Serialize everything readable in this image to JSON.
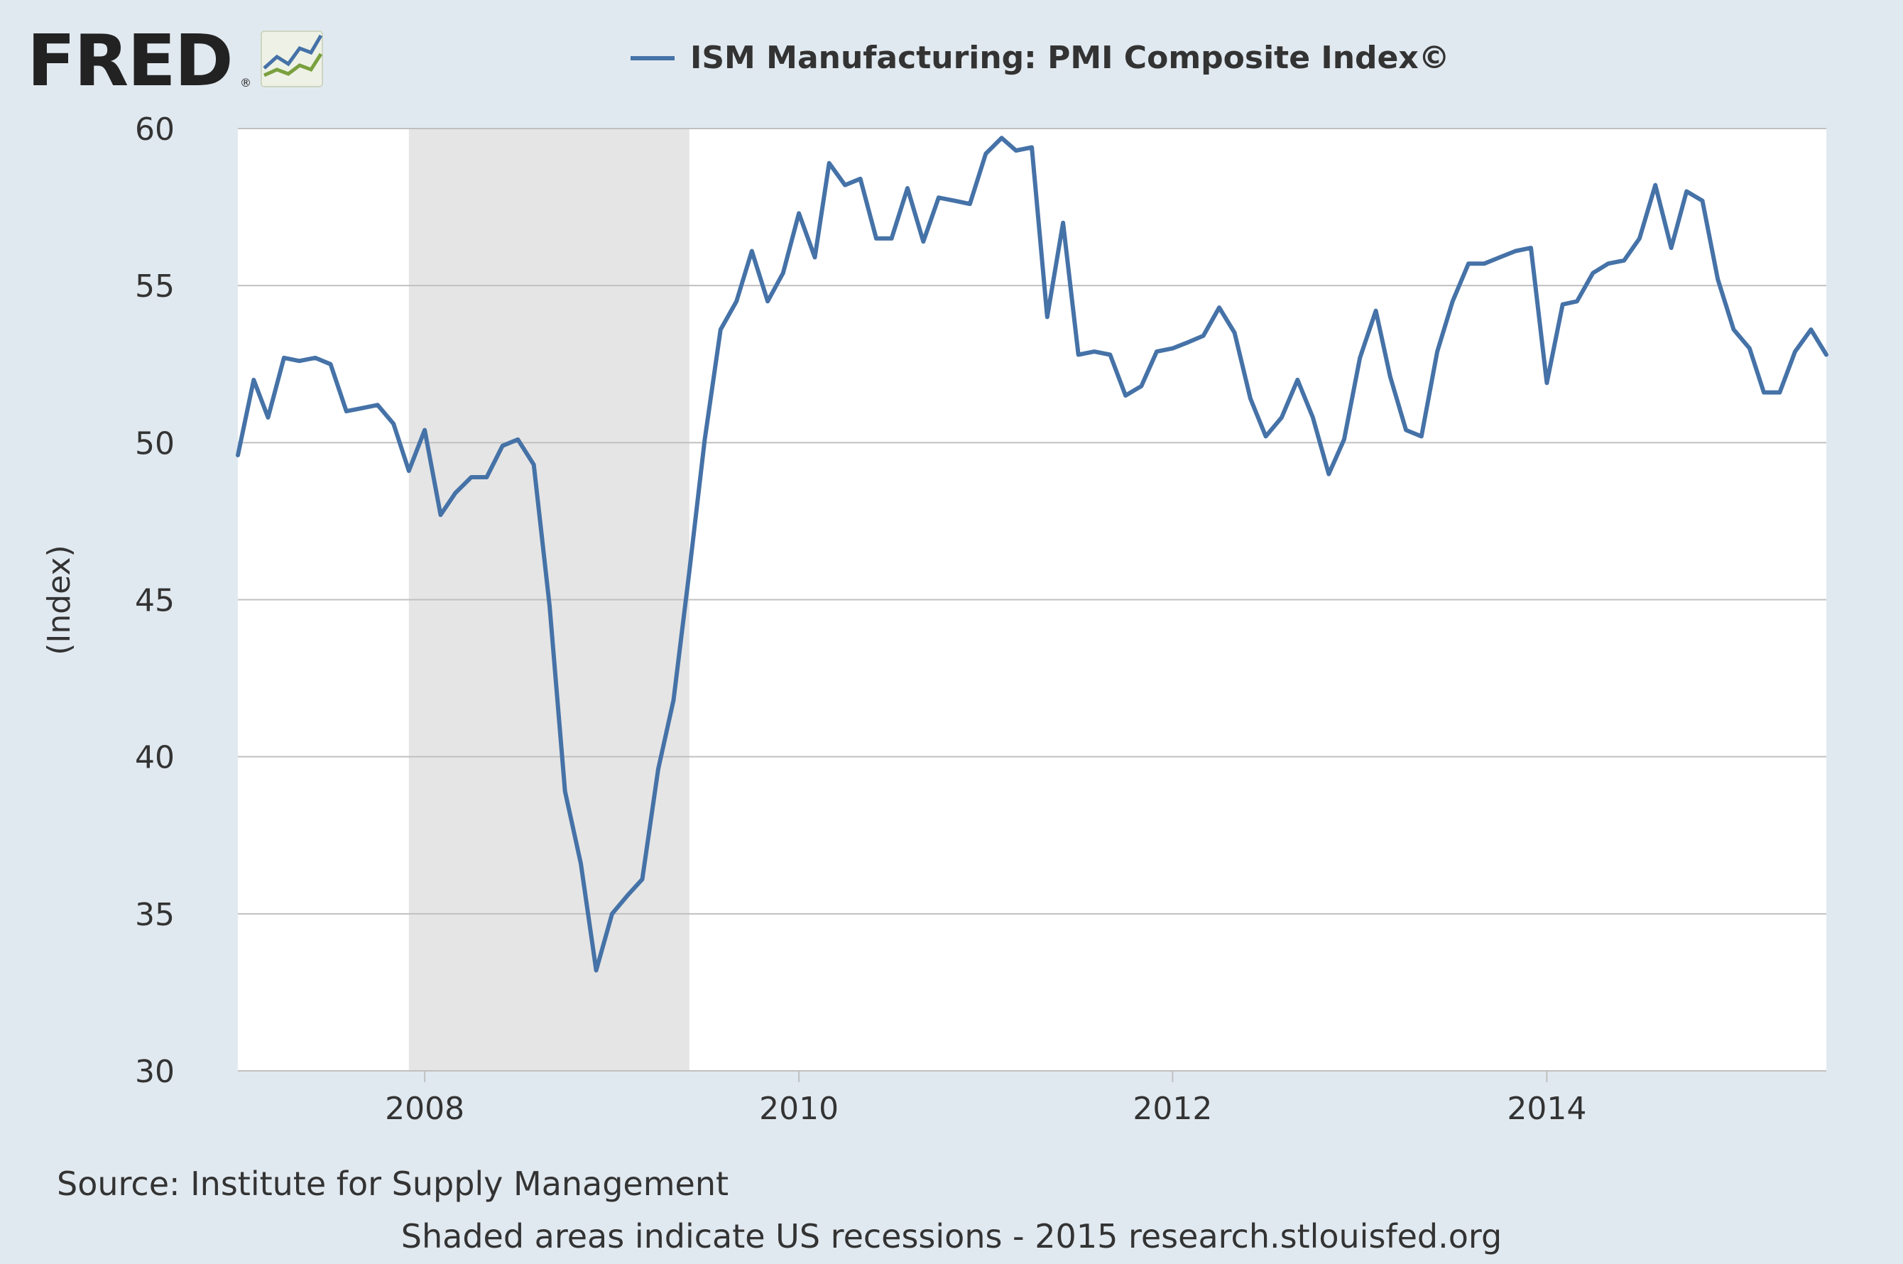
{
  "header": {
    "logo_text": "FRED",
    "logo_mark": "®",
    "logo_icon": "chart-trend-icon"
  },
  "footer": {
    "source": "Source: Institute for Supply Management",
    "note": "Shaded areas indicate US recessions - 2015 research.stlouisfed.org"
  },
  "colors": {
    "background": "#e1e9f0",
    "plot_background": "#ffffff",
    "line": "#4572a7",
    "recession": "#e5e5e5",
    "grid": "#c0c0c0",
    "text": "#333333"
  },
  "chart_data": {
    "type": "line",
    "title": "",
    "xlabel": "",
    "ylabel": "(Index)",
    "legend": {
      "position": "top-center",
      "entries": [
        "ISM Manufacturing: PMI Composite Index©"
      ]
    },
    "ylim": [
      30,
      60
    ],
    "xlim": [
      "2007-01-01",
      "2015-07-01"
    ],
    "y_ticks": [
      30,
      35,
      40,
      45,
      50,
      55,
      60
    ],
    "x_ticks": [
      "2008",
      "2010",
      "2012",
      "2014"
    ],
    "grid": {
      "horizontal": true,
      "vertical": false
    },
    "recessions": [
      {
        "start": "2007-12-01",
        "end": "2009-06-01"
      }
    ],
    "series": [
      {
        "name": "ISM Manufacturing: PMI Composite Index©",
        "x": [
          "2007-01",
          "2007-02",
          "2007-03",
          "2007-04",
          "2007-05",
          "2007-06",
          "2007-07",
          "2007-08",
          "2007-09",
          "2007-10",
          "2007-11",
          "2007-12",
          "2008-01",
          "2008-02",
          "2008-03",
          "2008-04",
          "2008-05",
          "2008-06",
          "2008-07",
          "2008-08",
          "2008-09",
          "2008-10",
          "2008-11",
          "2008-12",
          "2009-01",
          "2009-02",
          "2009-03",
          "2009-04",
          "2009-05",
          "2009-06",
          "2009-07",
          "2009-08",
          "2009-09",
          "2009-10",
          "2009-11",
          "2009-12",
          "2010-01",
          "2010-02",
          "2010-03",
          "2010-04",
          "2010-05",
          "2010-06",
          "2010-07",
          "2010-08",
          "2010-09",
          "2010-10",
          "2010-11",
          "2010-12",
          "2011-01",
          "2011-02",
          "2011-03",
          "2011-04",
          "2011-05",
          "2011-06",
          "2011-07",
          "2011-08",
          "2011-09",
          "2011-10",
          "2011-11",
          "2011-12",
          "2012-01",
          "2012-02",
          "2012-03",
          "2012-04",
          "2012-05",
          "2012-06",
          "2012-07",
          "2012-08",
          "2012-09",
          "2012-10",
          "2012-11",
          "2012-12",
          "2013-01",
          "2013-02",
          "2013-03",
          "2013-04",
          "2013-05",
          "2013-06",
          "2013-07",
          "2013-08",
          "2013-09",
          "2013-10",
          "2013-11",
          "2013-12",
          "2014-01",
          "2014-02",
          "2014-03",
          "2014-04",
          "2014-05",
          "2014-06",
          "2014-07",
          "2014-08",
          "2014-09",
          "2014-10",
          "2014-11",
          "2014-12",
          "2015-01",
          "2015-02",
          "2015-03",
          "2015-04",
          "2015-05",
          "2015-06",
          "2015-07"
        ],
        "values": [
          49.6,
          52.0,
          50.8,
          52.7,
          52.6,
          52.7,
          52.5,
          51.0,
          51.1,
          51.2,
          50.6,
          49.1,
          50.4,
          47.7,
          48.4,
          48.9,
          48.9,
          49.9,
          50.1,
          49.3,
          44.8,
          38.9,
          36.6,
          33.2,
          35.0,
          35.6,
          36.1,
          39.6,
          41.8,
          45.9,
          50.1,
          53.6,
          54.5,
          56.1,
          54.5,
          55.4,
          57.3,
          55.9,
          58.9,
          58.2,
          58.4,
          56.5,
          56.5,
          58.1,
          56.4,
          57.8,
          57.7,
          57.6,
          59.2,
          59.7,
          59.3,
          59.4,
          54.0,
          57.0,
          52.8,
          52.9,
          52.8,
          51.5,
          51.8,
          52.9,
          53.0,
          53.2,
          53.4,
          54.3,
          53.5,
          51.4,
          50.2,
          50.8,
          52.0,
          50.8,
          49.0,
          50.1,
          52.7,
          54.2,
          52.1,
          50.4,
          50.2,
          52.9,
          54.5,
          55.7,
          55.7,
          55.9,
          56.1,
          56.2,
          51.9,
          54.4,
          54.5,
          55.4,
          55.7,
          55.8,
          56.5,
          58.2,
          56.2,
          58.0,
          57.7,
          55.2,
          53.6,
          53.0,
          51.6,
          51.6,
          52.9,
          53.6,
          52.8
        ]
      }
    ]
  }
}
